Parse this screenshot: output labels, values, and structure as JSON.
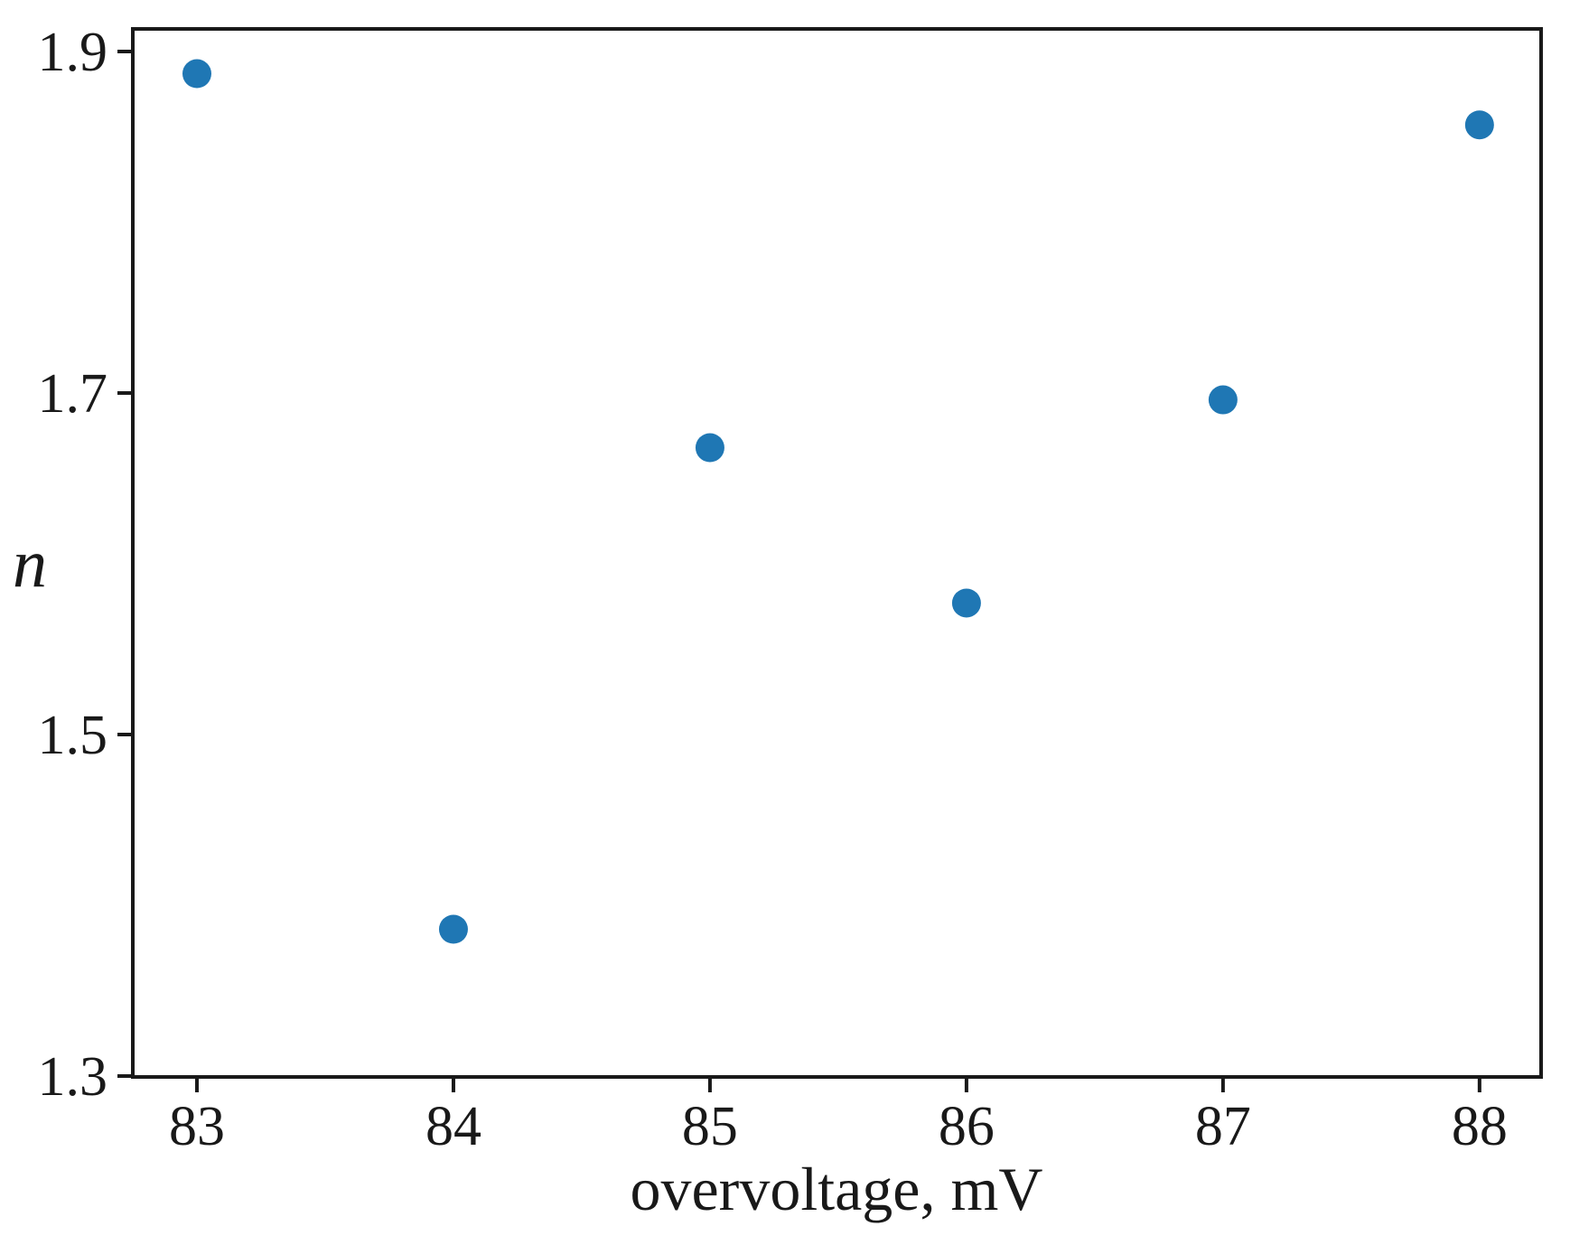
{
  "figure": {
    "background_color": "#ffffff",
    "axis_color": "#191919",
    "text_color": "#191919"
  },
  "chart_data": {
    "type": "scatter",
    "title": "",
    "xlabel": "overvoltage, mV",
    "ylabel": "n",
    "points": [
      {
        "x": 83,
        "y": 1.887
      },
      {
        "x": 84,
        "y": 1.386
      },
      {
        "x": 85,
        "y": 1.668
      },
      {
        "x": 86,
        "y": 1.577
      },
      {
        "x": 87,
        "y": 1.696
      },
      {
        "x": 88,
        "y": 1.857
      }
    ],
    "xtick_labels": [
      "83",
      "84",
      "85",
      "86",
      "87",
      "88"
    ],
    "xtick_values": [
      83,
      84,
      85,
      86,
      87,
      88
    ],
    "ytick_labels": [
      "1.9",
      "1.7",
      "1.5",
      "1.3"
    ],
    "ytick_values": [
      1.9,
      1.7,
      1.5,
      1.3
    ],
    "xlim": [
      82.75,
      88.24
    ],
    "ylim": [
      1.2995,
      1.9132
    ],
    "grid": false,
    "legend": false,
    "marker": {
      "shape": "circle",
      "color": "#1f77b4",
      "radius_px": 16
    }
  }
}
